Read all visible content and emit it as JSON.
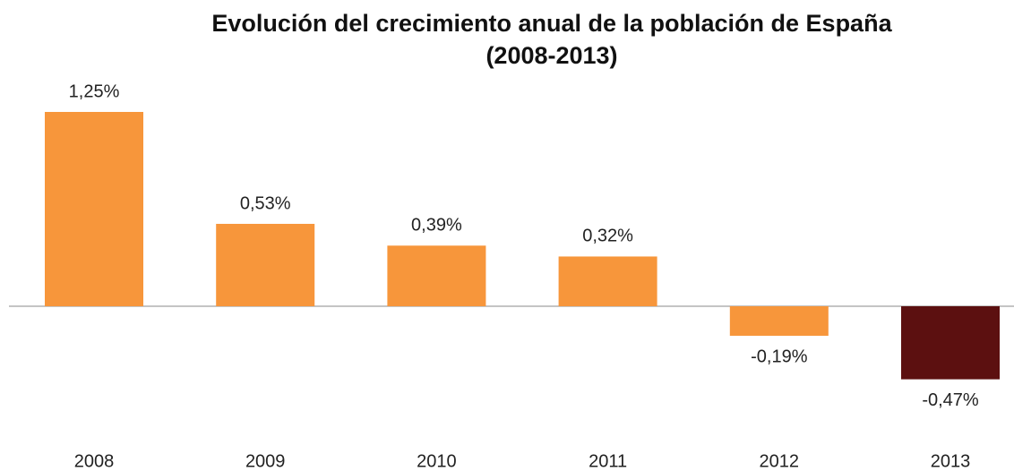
{
  "chart_data": {
    "type": "bar",
    "title": [
      "Evolución del crecimiento anual de la población de España",
      "(2008-2013)"
    ],
    "categories": [
      "2008",
      "2009",
      "2010",
      "2011",
      "2012",
      "2013"
    ],
    "values": [
      1.25,
      0.53,
      0.39,
      0.32,
      -0.19,
      -0.47
    ],
    "value_labels": [
      "1,25%",
      "0,53%",
      "0,39%",
      "0,32%",
      "-0,19%",
      "-0,47%"
    ],
    "colors": [
      "#f7963b",
      "#f7963b",
      "#f7963b",
      "#f7963b",
      "#f7963b",
      "#5c1010"
    ]
  }
}
